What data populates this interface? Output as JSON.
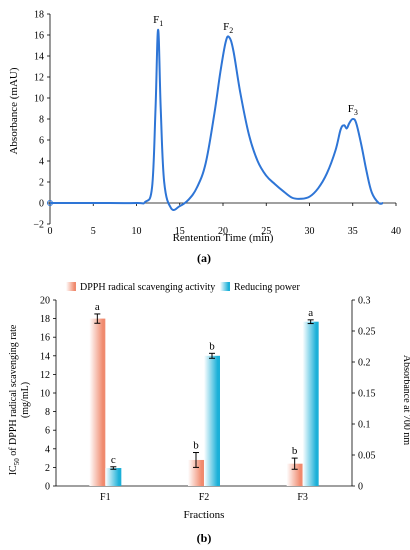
{
  "chart_data": [
    {
      "type": "line",
      "panel_label": "(a)",
      "xlabel": "Rentention Time (min)",
      "ylabel": "Absorbance (mAU)",
      "xlim": [
        0,
        40
      ],
      "ylim": [
        -2,
        18
      ],
      "xticks": [
        "0",
        "5",
        "10",
        "15",
        "20",
        "25",
        "30",
        "35",
        "40"
      ],
      "yticks": [
        "−2",
        "0",
        "2",
        "4",
        "6",
        "8",
        "10",
        "12",
        "14",
        "16",
        "18"
      ],
      "line_color": "#2e75d6",
      "x": [
        0,
        5,
        10,
        11,
        11.8,
        12.2,
        12.5,
        12.8,
        13.2,
        14,
        15,
        16,
        17,
        18,
        19,
        19.7,
        20.3,
        20.7,
        21.2,
        22,
        23,
        24,
        25,
        26,
        27,
        28,
        29,
        30,
        31,
        32,
        33,
        33.6,
        34,
        34.3,
        34.6,
        35,
        35.4,
        36,
        36.6,
        37.2,
        38,
        38.5
      ],
      "y": [
        0,
        0,
        0,
        0.1,
        1.5,
        9,
        16.5,
        9,
        2,
        -0.5,
        -0.3,
        0.3,
        1.5,
        3.8,
        8.5,
        12.5,
        15.3,
        15.8,
        14.5,
        10.5,
        6.5,
        4,
        2.6,
        1.8,
        1.1,
        0.5,
        0.4,
        0.6,
        1.4,
        2.8,
        5,
        7,
        7.4,
        7.1,
        7.6,
        8,
        7.6,
        5.5,
        3,
        1,
        0,
        0
      ],
      "annotations": [
        {
          "text": "F",
          "sub": "1",
          "x": 12.5,
          "y": 16.5
        },
        {
          "text": "F",
          "sub": "2",
          "x": 20.6,
          "y": 15.8
        },
        {
          "text": "F",
          "sub": "3",
          "x": 35,
          "y": 8
        }
      ]
    },
    {
      "type": "bar",
      "panel_label": "(b)",
      "xlabel": "Fractions",
      "categories": [
        "F1",
        "F2",
        "F3"
      ],
      "ylabel_left_line1": "IC",
      "ylabel_left_sub": "50",
      "ylabel_left_line1_rest": " of DPPH radical scavenging rate",
      "ylabel_left_line2": "(mg/mL)",
      "ylabel_right": "Absorbance at 700 nm",
      "ylim_left": [
        0,
        20
      ],
      "ylim_right": [
        0,
        0.3
      ],
      "yticks_left": [
        "0",
        "2",
        "4",
        "6",
        "8",
        "10",
        "12",
        "14",
        "16",
        "18",
        "20"
      ],
      "yticks_right": [
        "0",
        "0.05",
        "0.1",
        "0.15",
        "0.2",
        "0.25",
        "0.3"
      ],
      "series": [
        {
          "name": "DPPH radical scavenging activity",
          "axis": "left",
          "color": "#f08a6e",
          "values": [
            18.0,
            2.8,
            2.4
          ],
          "errors": [
            0.5,
            0.8,
            0.6
          ],
          "letters": [
            "a",
            "b",
            "b"
          ]
        },
        {
          "name": "Reducing power",
          "axis": "right",
          "color": "#1bb0d8",
          "values": [
            0.029,
            0.21,
            0.265
          ],
          "errors": [
            0.002,
            0.004,
            0.003
          ],
          "letters": [
            "c",
            "b",
            "a"
          ]
        }
      ]
    }
  ]
}
